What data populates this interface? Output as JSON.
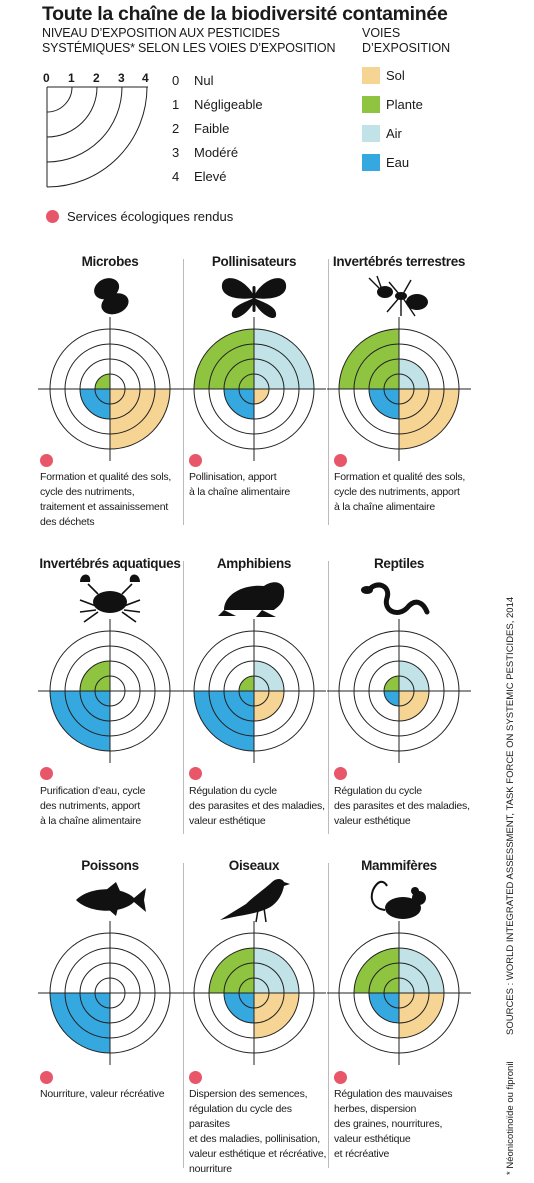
{
  "title": "Toute la chaîne de la biodiversité contaminée",
  "subtitle_line1": "NIVEAU D’EXPOSITION AUX PESTICIDES",
  "subtitle_line2": "SYSTÉMIQUES* SELON LES VOIES D’EXPOSITION",
  "voies_title_line1": "VOIES",
  "voies_title_line2": "D’EXPOSITION",
  "scale_numbers": [
    "0",
    "1",
    "2",
    "3",
    "4"
  ],
  "levels": [
    {
      "num": "0",
      "label": "Nul"
    },
    {
      "num": "1",
      "label": "Négligeable"
    },
    {
      "num": "2",
      "label": "Faible"
    },
    {
      "num": "3",
      "label": "Modéré"
    },
    {
      "num": "4",
      "label": "Elevé"
    }
  ],
  "voies": [
    {
      "label": "Sol",
      "color": "#f6d493",
      "icon": "sol-swatch"
    },
    {
      "label": "Plante",
      "color": "#8ec43f",
      "icon": "plante-swatch"
    },
    {
      "label": "Air",
      "color": "#c1e2e6",
      "icon": "air-swatch"
    },
    {
      "label": "Eau",
      "color": "#35a8e0",
      "icon": "eau-swatch"
    }
  ],
  "services_legend": "Services écologiques rendus",
  "groups": [
    {
      "name": "Microbes",
      "icon": "microbe-icon",
      "exposure": {
        "plante": 1,
        "air": 0,
        "eau": 2,
        "sol": 4
      },
      "services": [
        "Formation et qualité des sols,",
        "cycle des nutriments,",
        "traitement et assainissement",
        "des déchets"
      ]
    },
    {
      "name": "Pollinisateurs",
      "icon": "butterfly-icon",
      "exposure": {
        "plante": 4,
        "air": 4,
        "eau": 2,
        "sol": 1
      },
      "services": [
        "Pollinisation, apport",
        "à la chaîne alimentaire"
      ]
    },
    {
      "name": "Invertébrés terrestres",
      "icon": "ant-icon",
      "exposure": {
        "plante": 4,
        "air": 2,
        "eau": 2,
        "sol": 4
      },
      "services": [
        "Formation et qualité des sols,",
        "cycle des nutriments, apport",
        "à la chaîne alimentaire"
      ]
    },
    {
      "name": "Invertébrés aquatiques",
      "icon": "crab-icon",
      "exposure": {
        "plante": 2,
        "air": 0,
        "eau": 4,
        "sol": 0
      },
      "services": [
        "Purification d’eau, cycle",
        "des nutriments, apport",
        "à la chaîne alimentaire"
      ]
    },
    {
      "name": "Amphibiens",
      "icon": "frog-icon",
      "exposure": {
        "plante": 1,
        "air": 2,
        "eau": 4,
        "sol": 2
      },
      "services": [
        "Régulation du cycle",
        "des parasites et des maladies,",
        "valeur esthétique"
      ]
    },
    {
      "name": "Reptiles",
      "icon": "snake-icon",
      "exposure": {
        "plante": 1,
        "air": 2,
        "eau": 1,
        "sol": 2
      },
      "services": [
        "Régulation du cycle",
        "des parasites et des maladies,",
        "valeur esthétique"
      ]
    },
    {
      "name": "Poissons",
      "icon": "fish-icon",
      "exposure": {
        "plante": 0,
        "air": 0,
        "eau": 4,
        "sol": 0
      },
      "services": [
        "Nourriture, valeur récréative"
      ]
    },
    {
      "name": "Oiseaux",
      "icon": "bird-icon",
      "exposure": {
        "plante": 3,
        "air": 3,
        "eau": 2,
        "sol": 3
      },
      "services": [
        "Dispersion des semences,",
        "régulation du cycle des parasites",
        "et des maladies, pollinisation,",
        "valeur esthétique et récréative,",
        "nourriture"
      ]
    },
    {
      "name": "Mammifères",
      "icon": "mouse-icon",
      "exposure": {
        "plante": 3,
        "air": 3,
        "eau": 2,
        "sol": 3
      },
      "services": [
        "Régulation des mauvaises",
        "herbes, dispersion",
        "des graines, nourritures,",
        "valeur esthétique",
        "et récréative"
      ]
    }
  ],
  "sources": "SOURCES : WORLD INTEGRATED ASSESSMENT, TASK FORCE ON SYSTEMIC PESTICIDES, 2014",
  "footnote": "* Néonicotinoïde ou fipronil"
}
